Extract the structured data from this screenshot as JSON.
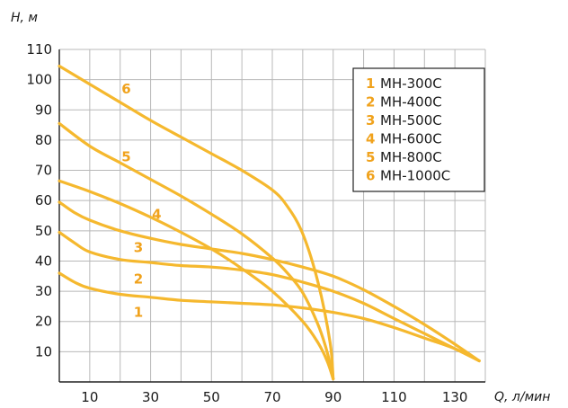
{
  "chart_data": {
    "type": "line",
    "xlabel": "Q, л/мин",
    "ylabel": "H, м",
    "xlim": [
      0,
      140
    ],
    "ylim": [
      0,
      110
    ],
    "xticks": [
      10,
      30,
      50,
      70,
      90,
      110,
      130
    ],
    "yticks": [
      10,
      20,
      30,
      40,
      50,
      60,
      70,
      80,
      90,
      100,
      110
    ],
    "grid": true,
    "legend_position": "top-right",
    "colors": {
      "curve": "#F5B82E",
      "label": "#F0A21C",
      "grid": "#b8b8b8",
      "axis": "#222222"
    },
    "series": [
      {
        "id": "1",
        "name": "МН-300С",
        "label": "1",
        "x": [
          0,
          5,
          10,
          20,
          30,
          40,
          50,
          60,
          70,
          80,
          90,
          100,
          110,
          120,
          130,
          138
        ],
        "y": [
          36,
          33,
          31,
          29,
          28,
          27,
          26.5,
          26,
          25.5,
          24.5,
          23,
          21,
          18,
          14.5,
          11,
          7
        ]
      },
      {
        "id": "2",
        "name": "МН-400С",
        "label": "2",
        "x": [
          0,
          5,
          10,
          20,
          30,
          40,
          50,
          60,
          70,
          80,
          90,
          100,
          110,
          120,
          130,
          138
        ],
        "y": [
          49.5,
          46,
          43,
          40.5,
          39.5,
          38.5,
          38,
          37,
          35.5,
          33,
          30,
          26,
          21,
          16,
          11,
          7
        ]
      },
      {
        "id": "3",
        "name": "МН-500С",
        "label": "3",
        "x": [
          0,
          5,
          10,
          20,
          30,
          40,
          50,
          60,
          70,
          80,
          90,
          100,
          110,
          120,
          130,
          138
        ],
        "y": [
          59.5,
          56,
          53.5,
          50,
          47.5,
          45.5,
          44,
          42.5,
          40.5,
          38,
          35,
          30.5,
          25,
          19,
          12.5,
          7
        ]
      },
      {
        "id": "4",
        "name": "МН-600С",
        "label": "4",
        "x": [
          0,
          10,
          20,
          30,
          40,
          50,
          60,
          70,
          80,
          85,
          88,
          90
        ],
        "y": [
          66.5,
          63,
          59,
          54.5,
          49.5,
          44,
          37.5,
          30,
          20,
          13,
          7,
          1
        ]
      },
      {
        "id": "5",
        "name": "МН-800С",
        "label": "5",
        "x": [
          0,
          10,
          20,
          30,
          40,
          50,
          60,
          70,
          75,
          80,
          85,
          88,
          90
        ],
        "y": [
          85.5,
          78,
          72.5,
          67,
          61.5,
          55.5,
          49,
          41,
          36,
          29.5,
          19,
          10,
          1
        ]
      },
      {
        "id": "6",
        "name": "МН-1000С",
        "label": "6",
        "x": [
          0,
          10,
          20,
          30,
          40,
          50,
          60,
          70,
          75,
          80,
          85,
          89,
          90
        ],
        "y": [
          104.5,
          98.5,
          92.5,
          86.5,
          81,
          75.5,
          70,
          63.5,
          58,
          49,
          33,
          13,
          1
        ]
      }
    ],
    "curve_labels": [
      {
        "series": "1",
        "x": 26,
        "y": 21.5
      },
      {
        "series": "2",
        "x": 26,
        "y": 32.5
      },
      {
        "series": "3",
        "x": 26,
        "y": 43
      },
      {
        "series": "4",
        "x": 32,
        "y": 54
      },
      {
        "series": "5",
        "x": 22,
        "y": 73
      },
      {
        "series": "6",
        "x": 22,
        "y": 95.5
      }
    ]
  }
}
